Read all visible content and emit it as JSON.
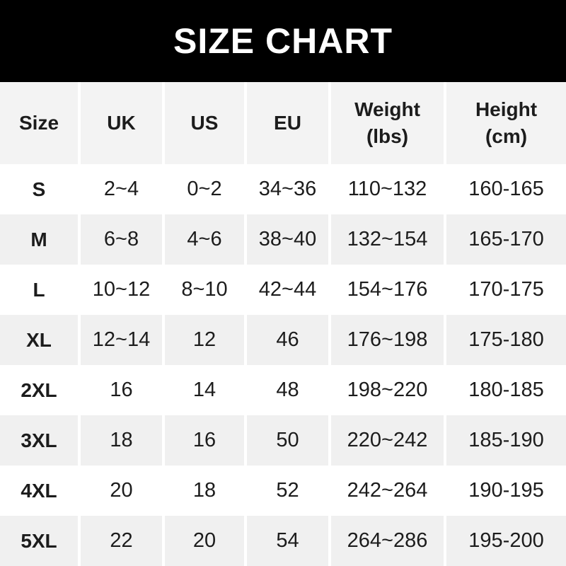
{
  "banner": {
    "title": "SIZE CHART",
    "bg_color": "#000000",
    "text_color": "#ffffff"
  },
  "colors": {
    "header_row_bg": "#f3f3f3",
    "alt_row_bg": "#f0f0f0",
    "row_bg": "#ffffff",
    "text": "#1c1c1c"
  },
  "chart_data": {
    "type": "table",
    "title": "SIZE CHART",
    "columns": [
      "Size",
      "UK",
      "US",
      "EU",
      "Weight (lbs)",
      "Height (cm)"
    ],
    "rows": [
      [
        "S",
        "2~4",
        "0~2",
        "34~36",
        "110~132",
        "160-165"
      ],
      [
        "M",
        "6~8",
        "4~6",
        "38~40",
        "132~154",
        "165-170"
      ],
      [
        "L",
        "10~12",
        "8~10",
        "42~44",
        "154~176",
        "170-175"
      ],
      [
        "XL",
        "12~14",
        "12",
        "46",
        "176~198",
        "175-180"
      ],
      [
        "2XL",
        "16",
        "14",
        "48",
        "198~220",
        "180-185"
      ],
      [
        "3XL",
        "18",
        "16",
        "50",
        "220~242",
        "185-190"
      ],
      [
        "4XL",
        "20",
        "18",
        "52",
        "242~264",
        "190-195"
      ],
      [
        "5XL",
        "22",
        "20",
        "54",
        "264~286",
        "195-200"
      ]
    ]
  },
  "table": {
    "header": {
      "size": "Size",
      "uk": "UK",
      "us": "US",
      "eu": "EU",
      "weight_line1": "Weight",
      "weight_line2": "(lbs)",
      "height_line1": "Height",
      "height_line2": "(cm)"
    },
    "rows": [
      {
        "size": "S",
        "uk": "2~4",
        "us": "0~2",
        "eu": "34~36",
        "weight": "110~132",
        "height": "160-165"
      },
      {
        "size": "M",
        "uk": "6~8",
        "us": "4~6",
        "eu": "38~40",
        "weight": "132~154",
        "height": "165-170"
      },
      {
        "size": "L",
        "uk": "10~12",
        "us": "8~10",
        "eu": "42~44",
        "weight": "154~176",
        "height": "170-175"
      },
      {
        "size": "XL",
        "uk": "12~14",
        "us": "12",
        "eu": "46",
        "weight": "176~198",
        "height": "175-180"
      },
      {
        "size": "2XL",
        "uk": "16",
        "us": "14",
        "eu": "48",
        "weight": "198~220",
        "height": "180-185"
      },
      {
        "size": "3XL",
        "uk": "18",
        "us": "16",
        "eu": "50",
        "weight": "220~242",
        "height": "185-190"
      },
      {
        "size": "4XL",
        "uk": "20",
        "us": "18",
        "eu": "52",
        "weight": "242~264",
        "height": "190-195"
      },
      {
        "size": "5XL",
        "uk": "22",
        "us": "20",
        "eu": "54",
        "weight": "264~286",
        "height": "195-200"
      }
    ]
  }
}
